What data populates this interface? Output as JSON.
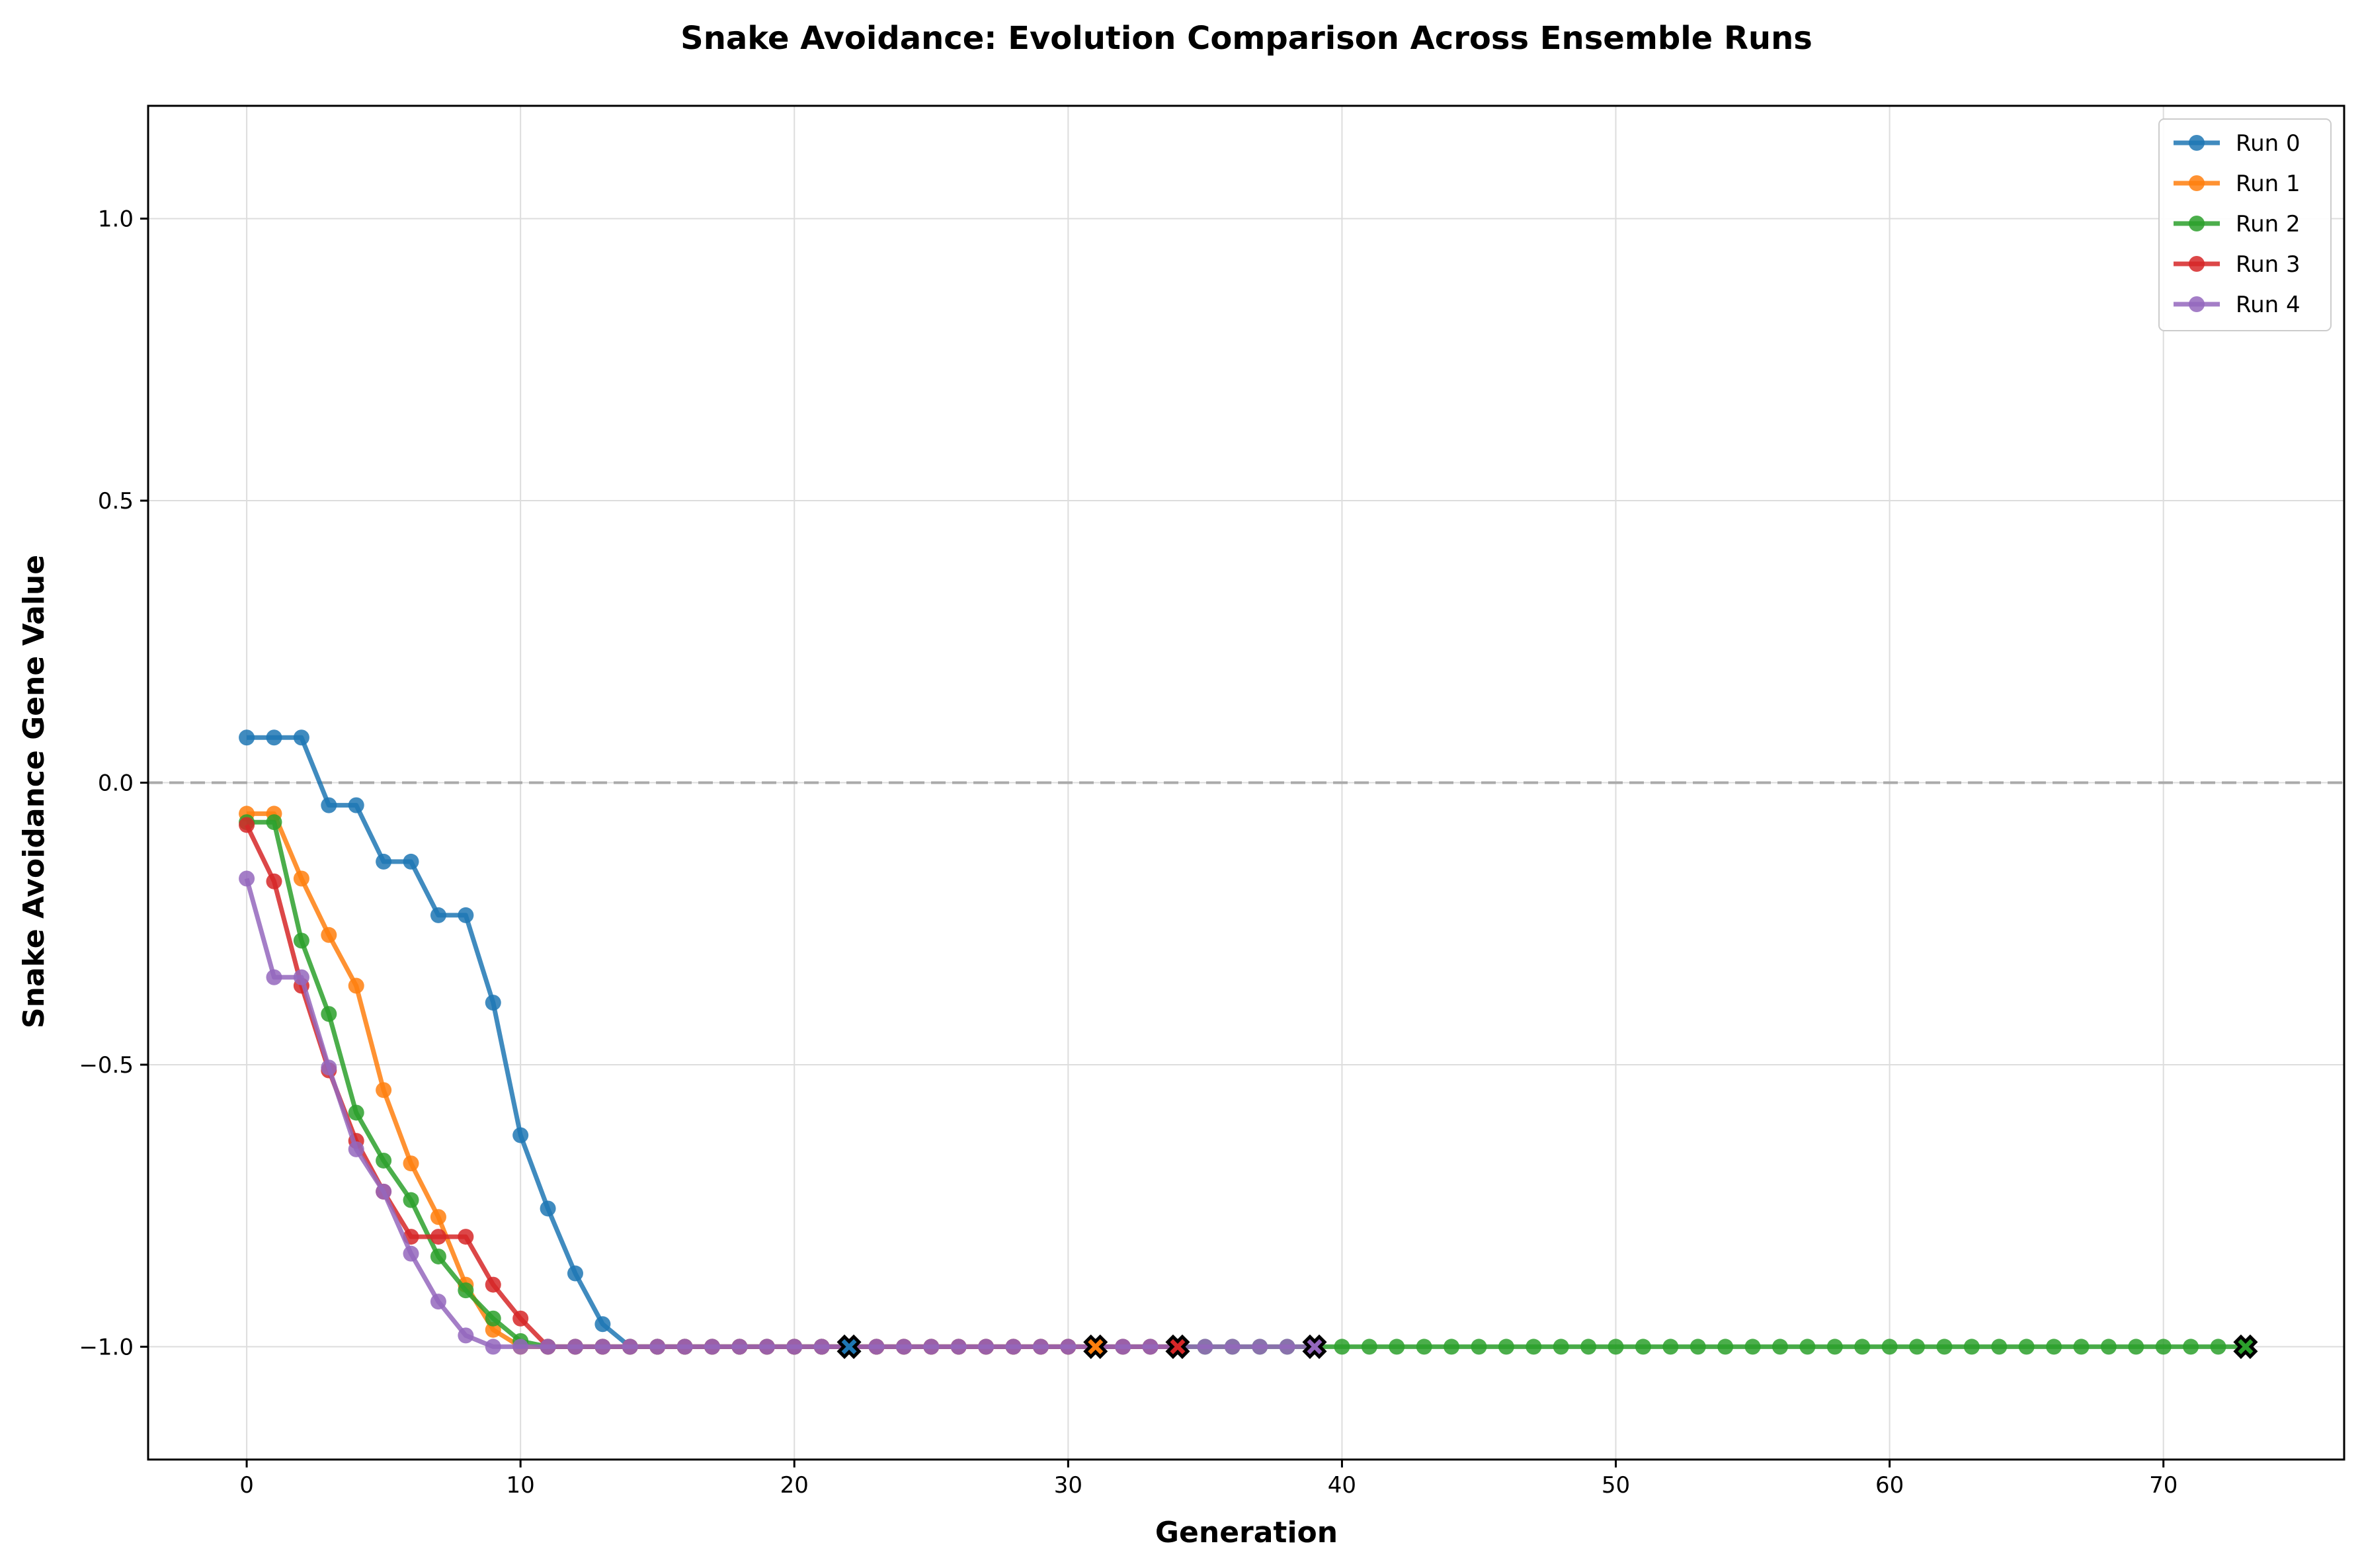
{
  "chart_data": {
    "type": "line",
    "title": "Snake Avoidance: Evolution Comparison Across Ensemble Runs",
    "xlabel": "Generation",
    "ylabel": "Snake Avoidance Gene Value",
    "xlim": [
      -3.6,
      76.6
    ],
    "ylim": [
      -1.2,
      1.2
    ],
    "xticks": [
      0,
      10,
      20,
      30,
      40,
      50,
      60,
      70
    ],
    "xtick_labels": [
      "0",
      "10",
      "20",
      "30",
      "40",
      "50",
      "60",
      "70"
    ],
    "yticks": [
      -1.0,
      -0.5,
      0.0,
      0.5,
      1.0
    ],
    "ytick_labels": [
      "−1.0",
      "−0.5",
      "0.0",
      "0.5",
      "1.0"
    ],
    "grid": true,
    "reference_line": {
      "y": 0.0,
      "style": "dashed",
      "color": "#aaaaaa"
    },
    "legend": {
      "placement": "top-right",
      "entries": [
        "Run 0",
        "Run 1",
        "Run 2",
        "Run 3",
        "Run 4"
      ]
    },
    "series": [
      {
        "name": "Run 0",
        "color": "#1f77b4",
        "y": [
          0.08,
          0.08,
          0.08,
          -0.04,
          -0.04,
          -0.14,
          -0.14,
          -0.235,
          -0.235,
          -0.39,
          -0.625,
          -0.755,
          -0.87,
          -0.96,
          -1.0,
          -1.0,
          -1.0,
          -1.0,
          -1.0,
          -1.0,
          -1.0,
          -1.0,
          -1.0
        ],
        "final_marker": {
          "x": 22,
          "y": -1.0
        }
      },
      {
        "name": "Run 1",
        "color": "#ff7f0e",
        "y": [
          -0.055,
          -0.055,
          -0.17,
          -0.27,
          -0.36,
          -0.545,
          -0.675,
          -0.77,
          -0.89,
          -0.97,
          -1.0,
          -1.0,
          -1.0,
          -1.0,
          -1.0,
          -1.0,
          -1.0,
          -1.0,
          -1.0,
          -1.0,
          -1.0,
          -1.0,
          -1.0,
          -1.0,
          -1.0,
          -1.0,
          -1.0,
          -1.0,
          -1.0,
          -1.0,
          -1.0,
          -1.0
        ],
        "final_marker": {
          "x": 31,
          "y": -1.0
        }
      },
      {
        "name": "Run 2",
        "color": "#2ca02c",
        "y": [
          -0.07,
          -0.07,
          -0.28,
          -0.41,
          -0.585,
          -0.67,
          -0.74,
          -0.84,
          -0.9,
          -0.95,
          -0.99,
          -1.0,
          -1.0,
          -1.0,
          -1.0,
          -1.0,
          -1.0,
          -1.0,
          -1.0,
          -1.0,
          -1.0,
          -1.0,
          -1.0,
          -1.0,
          -1.0,
          -1.0,
          -1.0,
          -1.0,
          -1.0,
          -1.0,
          -1.0,
          -1.0,
          -1.0,
          -1.0,
          -1.0,
          -1.0,
          -1.0,
          -1.0,
          -1.0,
          -1.0,
          -1.0,
          -1.0,
          -1.0,
          -1.0,
          -1.0,
          -1.0,
          -1.0,
          -1.0,
          -1.0,
          -1.0,
          -1.0,
          -1.0,
          -1.0,
          -1.0,
          -1.0,
          -1.0,
          -1.0,
          -1.0,
          -1.0,
          -1.0,
          -1.0,
          -1.0,
          -1.0,
          -1.0,
          -1.0,
          -1.0,
          -1.0,
          -1.0,
          -1.0,
          -1.0,
          -1.0,
          -1.0,
          -1.0,
          -1.0
        ],
        "final_marker": {
          "x": 73,
          "y": -1.0
        }
      },
      {
        "name": "Run 3",
        "color": "#d62728",
        "y": [
          -0.075,
          -0.175,
          -0.36,
          -0.51,
          -0.635,
          -0.725,
          -0.805,
          -0.805,
          -0.805,
          -0.89,
          -0.95,
          -1.0,
          -1.0,
          -1.0,
          -1.0,
          -1.0,
          -1.0,
          -1.0,
          -1.0,
          -1.0,
          -1.0,
          -1.0,
          -1.0,
          -1.0,
          -1.0,
          -1.0,
          -1.0,
          -1.0,
          -1.0,
          -1.0,
          -1.0,
          -1.0,
          -1.0,
          -1.0,
          -1.0
        ],
        "final_marker": {
          "x": 34,
          "y": -1.0
        }
      },
      {
        "name": "Run 4",
        "color": "#9467bd",
        "y": [
          -0.17,
          -0.345,
          -0.345,
          -0.505,
          -0.65,
          -0.725,
          -0.835,
          -0.92,
          -0.98,
          -1.0,
          -1.0,
          -1.0,
          -1.0,
          -1.0,
          -1.0,
          -1.0,
          -1.0,
          -1.0,
          -1.0,
          -1.0,
          -1.0,
          -1.0,
          -1.0,
          -1.0,
          -1.0,
          -1.0,
          -1.0,
          -1.0,
          -1.0,
          -1.0,
          -1.0,
          -1.0,
          -1.0,
          -1.0,
          -1.0,
          -1.0,
          -1.0,
          -1.0,
          -1.0,
          -1.0
        ],
        "final_marker": {
          "x": 39,
          "y": -1.0
        }
      }
    ]
  }
}
